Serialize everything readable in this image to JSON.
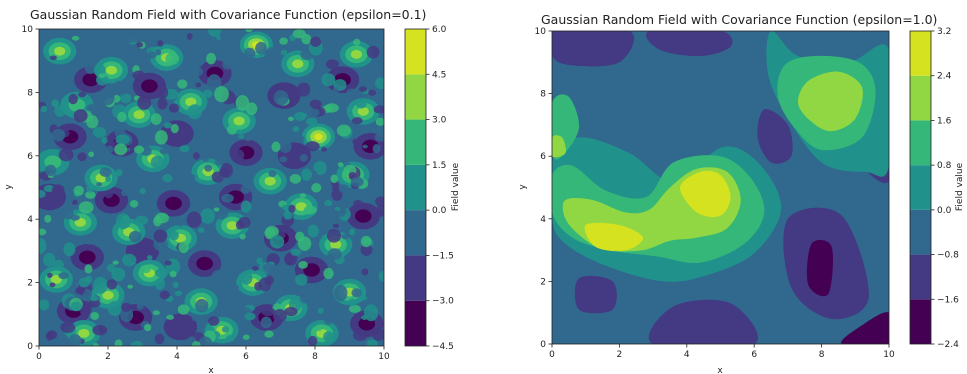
{
  "chart_data": [
    {
      "type": "contourf",
      "title": "Gaussian Random Field with Covariance Function (epsilon=0.1)",
      "xlabel": "x",
      "ylabel": "y",
      "xlim": [
        0,
        10
      ],
      "ylim": [
        0,
        10
      ],
      "xticks": [
        "0",
        "2",
        "4",
        "6",
        "8",
        "10"
      ],
      "yticks": [
        "0",
        "2",
        "4",
        "6",
        "8",
        "10"
      ],
      "colorbar": {
        "label": "Field value",
        "levels": [
          -4.5,
          -3.0,
          -1.5,
          0.0,
          1.5,
          3.0,
          4.5,
          6.0
        ],
        "tick_labels": [
          "−4.5",
          "−3.0",
          "−1.5",
          "0.0",
          "1.5",
          "3.0",
          "4.5",
          "6.0"
        ]
      },
      "colormap": [
        "#440154",
        "#443983",
        "#31688e",
        "#21918c",
        "#35b779",
        "#90d743",
        "#d5e21f"
      ],
      "field": {
        "background_level_index": 2,
        "blobs": [
          {
            "x": 0.6,
            "y": 9.3,
            "v": 3.2
          },
          {
            "x": 2.1,
            "y": 8.7,
            "v": 3.4
          },
          {
            "x": 3.7,
            "y": 9.1,
            "v": 3.0
          },
          {
            "x": 6.3,
            "y": 9.5,
            "v": 6.0
          },
          {
            "x": 7.5,
            "y": 8.9,
            "v": 3.1
          },
          {
            "x": 9.2,
            "y": 9.2,
            "v": 3.3
          },
          {
            "x": 1.1,
            "y": 7.6,
            "v": 2.8
          },
          {
            "x": 2.9,
            "y": 7.3,
            "v": 3.3
          },
          {
            "x": 4.4,
            "y": 7.7,
            "v": 3.2
          },
          {
            "x": 5.8,
            "y": 7.1,
            "v": 3.8
          },
          {
            "x": 8.1,
            "y": 6.6,
            "v": 4.5
          },
          {
            "x": 9.4,
            "y": 7.4,
            "v": 3.1
          },
          {
            "x": 0.4,
            "y": 5.8,
            "v": 2.9
          },
          {
            "x": 1.8,
            "y": 5.3,
            "v": 3.1
          },
          {
            "x": 3.3,
            "y": 5.9,
            "v": 3.6
          },
          {
            "x": 4.9,
            "y": 5.5,
            "v": 3.0
          },
          {
            "x": 6.7,
            "y": 5.2,
            "v": 3.3
          },
          {
            "x": 7.6,
            "y": 4.4,
            "v": 3.2
          },
          {
            "x": 9.1,
            "y": 5.4,
            "v": 3.4
          },
          {
            "x": 1.2,
            "y": 3.9,
            "v": 3.0
          },
          {
            "x": 2.6,
            "y": 3.6,
            "v": 4.0
          },
          {
            "x": 4.1,
            "y": 3.4,
            "v": 3.5
          },
          {
            "x": 5.6,
            "y": 3.8,
            "v": 3.1
          },
          {
            "x": 8.6,
            "y": 3.2,
            "v": 3.3
          },
          {
            "x": 0.5,
            "y": 2.1,
            "v": 3.1
          },
          {
            "x": 2.0,
            "y": 1.6,
            "v": 3.2
          },
          {
            "x": 3.2,
            "y": 2.3,
            "v": 3.0
          },
          {
            "x": 4.7,
            "y": 1.4,
            "v": 3.3
          },
          {
            "x": 6.2,
            "y": 2.0,
            "v": 3.6
          },
          {
            "x": 7.3,
            "y": 1.2,
            "v": 3.1
          },
          {
            "x": 9.0,
            "y": 1.7,
            "v": 3.4
          },
          {
            "x": 1.3,
            "y": 0.4,
            "v": 3.0
          },
          {
            "x": 5.3,
            "y": 0.5,
            "v": 3.2
          },
          {
            "x": 8.2,
            "y": 0.4,
            "v": 3.1
          }
        ],
        "troughs": [
          {
            "x": 1.5,
            "y": 8.4,
            "v": -3.2
          },
          {
            "x": 3.2,
            "y": 8.2,
            "v": -3.1
          },
          {
            "x": 5.1,
            "y": 8.6,
            "v": -3.4
          },
          {
            "x": 7.1,
            "y": 7.9,
            "v": -3.0
          },
          {
            "x": 8.8,
            "y": 8.4,
            "v": -3.3
          },
          {
            "x": 0.9,
            "y": 6.6,
            "v": -3.1
          },
          {
            "x": 2.4,
            "y": 6.4,
            "v": -3.3
          },
          {
            "x": 4.0,
            "y": 6.7,
            "v": -3.0
          },
          {
            "x": 6.0,
            "y": 6.1,
            "v": -3.2
          },
          {
            "x": 7.4,
            "y": 6.0,
            "v": -3.0
          },
          {
            "x": 9.6,
            "y": 6.3,
            "v": -3.4
          },
          {
            "x": 0.3,
            "y": 4.7,
            "v": -3.0
          },
          {
            "x": 2.1,
            "y": 4.6,
            "v": -3.2
          },
          {
            "x": 3.9,
            "y": 4.5,
            "v": -3.1
          },
          {
            "x": 5.7,
            "y": 4.7,
            "v": -3.4
          },
          {
            "x": 7.0,
            "y": 3.4,
            "v": -3.1
          },
          {
            "x": 9.4,
            "y": 4.1,
            "v": -3.2
          },
          {
            "x": 1.4,
            "y": 2.8,
            "v": -3.3
          },
          {
            "x": 3.0,
            "y": 3.0,
            "v": -3.0
          },
          {
            "x": 4.8,
            "y": 2.6,
            "v": -3.2
          },
          {
            "x": 7.9,
            "y": 2.4,
            "v": -3.1
          },
          {
            "x": 1.0,
            "y": 1.1,
            "v": -3.1
          },
          {
            "x": 2.8,
            "y": 0.9,
            "v": -3.3
          },
          {
            "x": 4.1,
            "y": 0.6,
            "v": -3.0
          },
          {
            "x": 6.6,
            "y": 0.9,
            "v": -3.2
          },
          {
            "x": 9.5,
            "y": 0.7,
            "v": -3.1
          }
        ]
      }
    },
    {
      "type": "contourf",
      "title": "Gaussian Random Field with Covariance Function (epsilon=1.0)",
      "xlabel": "x",
      "ylabel": "y",
      "xlim": [
        0,
        10
      ],
      "ylim": [
        0,
        10
      ],
      "xticks": [
        "0",
        "2",
        "4",
        "6",
        "8",
        "10"
      ],
      "yticks": [
        "0",
        "2",
        "4",
        "6",
        "8",
        "10"
      ],
      "colorbar": {
        "label": "Field value",
        "levels": [
          -2.4,
          -1.6,
          -0.8,
          0.0,
          0.8,
          1.6,
          2.4,
          3.2
        ],
        "tick_labels": [
          "−2.4",
          "−1.6",
          "−0.8",
          "0.0",
          "0.8",
          "1.6",
          "2.4",
          "3.2"
        ]
      },
      "colormap": [
        "#440154",
        "#443983",
        "#31688e",
        "#21918c",
        "#35b779",
        "#90d743",
        "#d5e21f"
      ],
      "field": {
        "regions": [
          {
            "level_index": 0,
            "points": [
              [
                0.0,
                10.0
              ],
              [
                1.7,
                10.0
              ],
              [
                1.5,
                9.6
              ],
              [
                0.7,
                9.5
              ],
              [
                0.0,
                9.7
              ]
            ]
          },
          {
            "level_index": 1,
            "points": [
              [
                0.0,
                10.0
              ],
              [
                2.3,
                10.0
              ],
              [
                2.0,
                9.0
              ],
              [
                0.6,
                8.9
              ],
              [
                0.0,
                9.2
              ]
            ]
          },
          {
            "level_index": 1,
            "points": [
              [
                2.9,
                10.0
              ],
              [
                5.0,
                10.0
              ],
              [
                5.3,
                9.5
              ],
              [
                4.4,
                9.2
              ],
              [
                3.2,
                9.4
              ]
            ]
          },
          {
            "level_index": 1,
            "points": [
              [
                6.3,
                7.5
              ],
              [
                7.0,
                7.0
              ],
              [
                7.1,
                6.0
              ],
              [
                6.5,
                5.8
              ],
              [
                6.1,
                6.6
              ]
            ]
          },
          {
            "level_index": 1,
            "points": [
              [
                9.1,
                6.7
              ],
              [
                10.0,
                6.8
              ],
              [
                10.0,
                5.2
              ],
              [
                9.3,
                5.6
              ]
            ]
          },
          {
            "level_index": 1,
            "points": [
              [
                0.8,
                2.1
              ],
              [
                1.8,
                2.0
              ],
              [
                1.8,
                1.1
              ],
              [
                0.8,
                1.1
              ]
            ]
          },
          {
            "level_index": 1,
            "points": [
              [
                3.6,
                1.2
              ],
              [
                5.3,
                1.3
              ],
              [
                6.0,
                0.0
              ],
              [
                3.0,
                0.0
              ]
            ]
          },
          {
            "level_index": 1,
            "points": [
              [
                7.0,
                4.0
              ],
              [
                8.6,
                4.1
              ],
              [
                9.4,
                1.5
              ],
              [
                8.3,
                0.8
              ],
              [
                7.1,
                1.8
              ]
            ]
          },
          {
            "level_index": 0,
            "points": [
              [
                7.7,
                3.2
              ],
              [
                8.3,
                3.1
              ],
              [
                8.2,
                1.6
              ],
              [
                7.6,
                1.9
              ]
            ]
          },
          {
            "level_index": 0,
            "points": [
              [
                8.6,
                0.0
              ],
              [
                10.0,
                0.0
              ],
              [
                10.0,
                1.0
              ],
              [
                9.2,
                0.6
              ]
            ]
          },
          {
            "level_index": 3,
            "points": [
              [
                0.0,
                5.8
              ],
              [
                0.8,
                6.6
              ],
              [
                2.3,
                6.1
              ],
              [
                3.6,
                5.2
              ],
              [
                5.1,
                6.3
              ],
              [
                6.2,
                5.7
              ],
              [
                6.8,
                4.3
              ],
              [
                6.0,
                2.9
              ],
              [
                4.6,
                2.2
              ],
              [
                3.3,
                2.0
              ],
              [
                1.6,
                2.5
              ],
              [
                0.4,
                3.2
              ],
              [
                0.0,
                4.0
              ]
            ]
          },
          {
            "level_index": 3,
            "points": [
              [
                6.5,
                10.0
              ],
              [
                7.3,
                9.2
              ],
              [
                8.8,
                9.0
              ],
              [
                10.0,
                9.4
              ],
              [
                10.0,
                5.7
              ],
              [
                9.3,
                5.5
              ],
              [
                8.0,
                5.8
              ],
              [
                6.9,
                7.4
              ],
              [
                6.4,
                8.7
              ]
            ]
          },
          {
            "level_index": 4,
            "points": [
              [
                0.0,
                5.4
              ],
              [
                0.6,
                5.7
              ],
              [
                1.6,
                4.9
              ],
              [
                2.8,
                4.7
              ],
              [
                3.6,
                5.8
              ],
              [
                5.0,
                6.0
              ],
              [
                5.9,
                5.3
              ],
              [
                6.3,
                4.2
              ],
              [
                5.7,
                3.2
              ],
              [
                4.4,
                2.6
              ],
              [
                3.1,
                2.8
              ],
              [
                1.7,
                3.0
              ],
              [
                0.6,
                3.4
              ],
              [
                0.0,
                4.2
              ]
            ]
          },
          {
            "level_index": 4,
            "points": [
              [
                6.9,
                8.9
              ],
              [
                7.8,
                9.2
              ],
              [
                9.1,
                9.0
              ],
              [
                9.6,
                8.1
              ],
              [
                9.2,
                6.6
              ],
              [
                8.0,
                6.2
              ],
              [
                7.2,
                6.9
              ],
              [
                6.7,
                7.9
              ]
            ]
          },
          {
            "level_index": 4,
            "points": [
              [
                0.0,
                7.7
              ],
              [
                0.5,
                7.9
              ],
              [
                0.8,
                6.9
              ],
              [
                0.3,
                6.0
              ],
              [
                0.0,
                6.1
              ]
            ]
          },
          {
            "level_index": 5,
            "points": [
              [
                0.4,
                4.6
              ],
              [
                1.2,
                4.6
              ],
              [
                2.2,
                4.2
              ],
              [
                2.9,
                4.3
              ],
              [
                3.5,
                5.0
              ],
              [
                4.3,
                5.6
              ],
              [
                5.2,
                5.5
              ],
              [
                5.6,
                4.6
              ],
              [
                5.2,
                3.7
              ],
              [
                4.3,
                3.4
              ],
              [
                3.5,
                3.3
              ],
              [
                2.7,
                3.0
              ],
              [
                1.6,
                3.0
              ],
              [
                0.9,
                3.4
              ],
              [
                0.4,
                4.0
              ]
            ]
          },
          {
            "level_index": 5,
            "points": [
              [
                7.6,
                8.4
              ],
              [
                8.5,
                8.7
              ],
              [
                9.2,
                8.2
              ],
              [
                9.0,
                7.2
              ],
              [
                8.3,
                6.8
              ],
              [
                7.7,
                7.1
              ],
              [
                7.3,
                7.7
              ]
            ]
          },
          {
            "level_index": 5,
            "points": [
              [
                0.0,
                6.6
              ],
              [
                0.3,
                6.6
              ],
              [
                0.4,
                6.1
              ],
              [
                0.0,
                6.0
              ]
            ]
          },
          {
            "level_index": 6,
            "points": [
              [
                1.0,
                3.8
              ],
              [
                2.0,
                3.8
              ],
              [
                2.7,
                3.4
              ],
              [
                2.2,
                3.0
              ],
              [
                1.3,
                3.1
              ]
            ]
          },
          {
            "level_index": 6,
            "points": [
              [
                3.8,
                5.0
              ],
              [
                4.4,
                5.5
              ],
              [
                5.0,
                5.4
              ],
              [
                5.3,
                4.7
              ],
              [
                5.0,
                4.1
              ],
              [
                4.3,
                4.2
              ]
            ]
          }
        ]
      }
    }
  ]
}
